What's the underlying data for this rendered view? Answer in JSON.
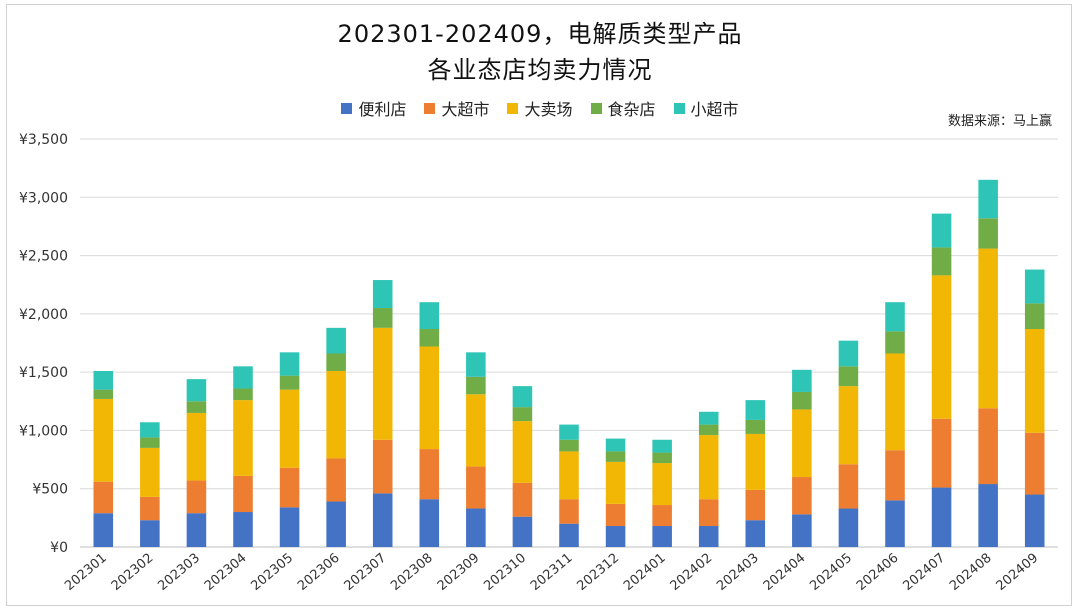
{
  "chart_data": {
    "type": "bar",
    "stacked": true,
    "title": "202301-202409，电解质类型产品",
    "subtitle": "各业态店均卖力情况",
    "source": "数据来源：马上赢",
    "xlabel": "",
    "ylabel": "",
    "ylim": [
      0,
      3500
    ],
    "yticks": [
      "¥0",
      "¥500",
      "¥1,000",
      "¥1,500",
      "¥2,000",
      "¥2,500",
      "¥3,000",
      "¥3,500"
    ],
    "grid": true,
    "legend_position": "top",
    "categories": [
      "202301",
      "202302",
      "202303",
      "202304",
      "202305",
      "202306",
      "202307",
      "202308",
      "202309",
      "202310",
      "202311",
      "202312",
      "202401",
      "202402",
      "202403",
      "202404",
      "202405",
      "202406",
      "202407",
      "202408",
      "202409"
    ],
    "series": [
      {
        "name": "便利店",
        "color": "#4472C4",
        "values": [
          290,
          230,
          290,
          300,
          340,
          390,
          460,
          410,
          330,
          260,
          200,
          180,
          180,
          180,
          230,
          280,
          330,
          400,
          510,
          540,
          450
        ]
      },
      {
        "name": "大超市",
        "color": "#ED7D31",
        "values": [
          270,
          200,
          280,
          310,
          340,
          370,
          460,
          430,
          360,
          290,
          210,
          190,
          180,
          230,
          260,
          320,
          380,
          430,
          590,
          650,
          530
        ]
      },
      {
        "name": "大卖场",
        "color": "#F2B705",
        "values": [
          710,
          420,
          580,
          650,
          670,
          750,
          960,
          880,
          620,
          530,
          410,
          360,
          360,
          550,
          480,
          580,
          670,
          830,
          1230,
          1370,
          890
        ]
      },
      {
        "name": "食杂店",
        "color": "#70AD47",
        "values": [
          80,
          90,
          100,
          100,
          120,
          150,
          170,
          150,
          150,
          120,
          100,
          90,
          90,
          90,
          120,
          150,
          170,
          190,
          240,
          260,
          220
        ]
      },
      {
        "name": "小超市",
        "color": "#2EC4B6",
        "values": [
          160,
          130,
          190,
          190,
          200,
          220,
          240,
          230,
          210,
          180,
          130,
          110,
          110,
          110,
          170,
          190,
          220,
          250,
          290,
          330,
          290
        ]
      }
    ]
  }
}
